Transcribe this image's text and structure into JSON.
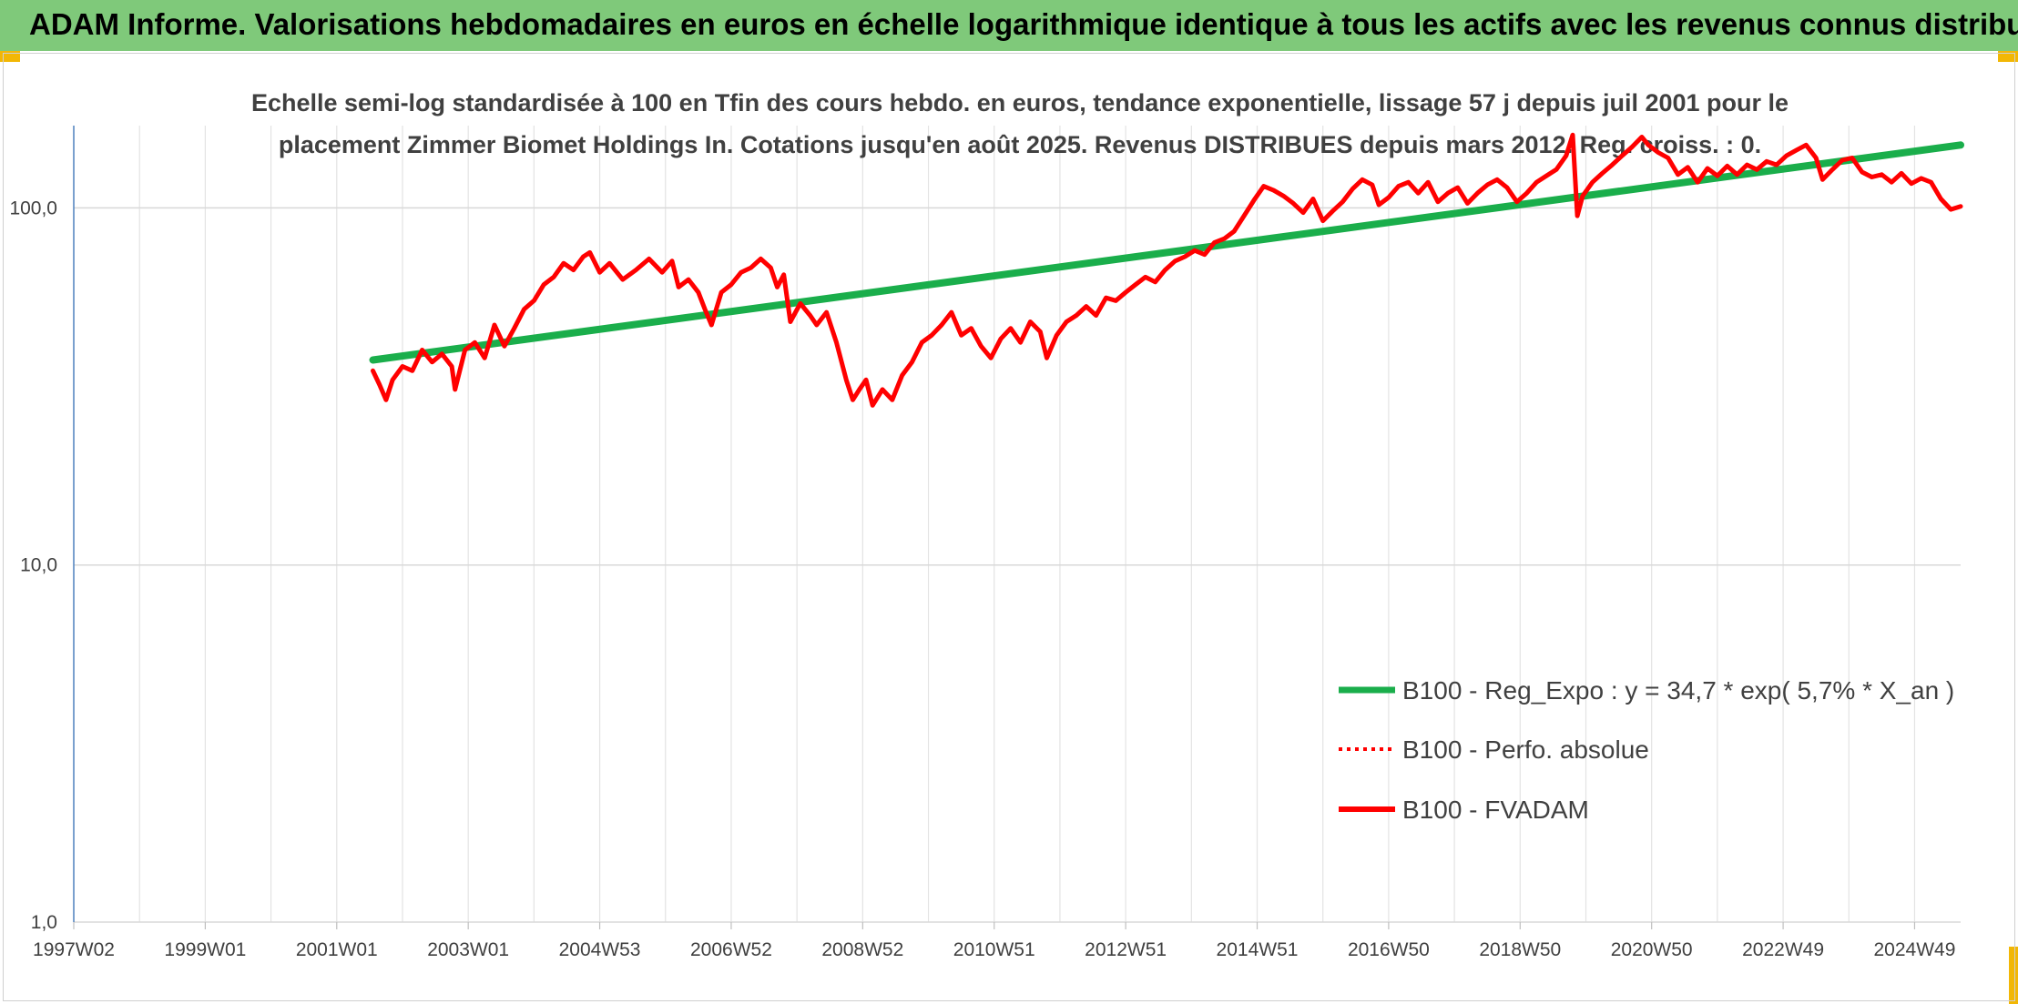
{
  "header": {
    "title": "ADAM Informe. Valorisations hebdomadaires en euros en échelle logarithmique identique à tous les actifs avec les revenus connus distribués"
  },
  "colors": {
    "banner": "#7fc97a",
    "accent": "#f2b705",
    "trend": "#1aae4b",
    "perf": "#ff0000",
    "grid": "#d9d9d9"
  },
  "chart_data": {
    "type": "line",
    "title_lines": [
      "Echelle semi-log standardisée à 100 en Tfin des cours hebdo. en euros, tendance exponentielle, lissage 57 j depuis juil 2001 pour le",
      "placement Zimmer Biomet Holdings In. Cotations jusqu'en août 2025. Revenus DISTRIBUES depuis mars 2012. Reg. croiss. : 0."
    ],
    "y_scale": "log",
    "ylim": [
      1,
      170
    ],
    "y_ticks": [
      {
        "value": 1,
        "label": "1,0"
      },
      {
        "value": 10,
        "label": "10,0"
      },
      {
        "value": 100,
        "label": "100,0"
      }
    ],
    "xlim": [
      1997.0,
      2025.7
    ],
    "x_ticks": [
      {
        "value": 1997.0,
        "label": "1997W02"
      },
      {
        "value": 1999.0,
        "label": "1999W01"
      },
      {
        "value": 2001.0,
        "label": "2001W01"
      },
      {
        "value": 2003.0,
        "label": "2003W01"
      },
      {
        "value": 2005.0,
        "label": "2004W53"
      },
      {
        "value": 2007.0,
        "label": "2006W52"
      },
      {
        "value": 2009.0,
        "label": "2008W52"
      },
      {
        "value": 2011.0,
        "label": "2010W51"
      },
      {
        "value": 2013.0,
        "label": "2012W51"
      },
      {
        "value": 2015.0,
        "label": "2014W51"
      },
      {
        "value": 2017.0,
        "label": "2016W50"
      },
      {
        "value": 2019.0,
        "label": "2018W50"
      },
      {
        "value": 2021.0,
        "label": "2020W50"
      },
      {
        "value": 2023.0,
        "label": "2022W49"
      },
      {
        "value": 2025.0,
        "label": "2024W49"
      }
    ],
    "grid": true,
    "legend_position": "bottom-right",
    "series": [
      {
        "name": "B100 - Reg_Expo : y = 34,7 * exp( 5,7% *  X_an )",
        "style": "solid-thick",
        "color": "#1aae4b",
        "points": [
          [
            2001.55,
            37.5
          ],
          [
            2025.7,
            150
          ]
        ]
      },
      {
        "name": "B100 - Perfo. absolue",
        "style": "dotted",
        "color": "#ff0000",
        "points": []
      },
      {
        "name": "B100 - FVADAM",
        "style": "solid",
        "color": "#ff0000",
        "points": [
          [
            2001.55,
            35
          ],
          [
            2001.65,
            32
          ],
          [
            2001.75,
            29
          ],
          [
            2001.85,
            33
          ],
          [
            2002.0,
            36
          ],
          [
            2002.15,
            35
          ],
          [
            2002.3,
            40
          ],
          [
            2002.45,
            37
          ],
          [
            2002.6,
            39
          ],
          [
            2002.75,
            36
          ],
          [
            2002.8,
            31
          ],
          [
            2002.95,
            40
          ],
          [
            2003.1,
            42
          ],
          [
            2003.25,
            38
          ],
          [
            2003.4,
            47
          ],
          [
            2003.55,
            41
          ],
          [
            2003.7,
            46
          ],
          [
            2003.85,
            52
          ],
          [
            2004.0,
            55
          ],
          [
            2004.15,
            61
          ],
          [
            2004.3,
            64
          ],
          [
            2004.45,
            70
          ],
          [
            2004.6,
            67
          ],
          [
            2004.75,
            73
          ],
          [
            2004.85,
            75
          ],
          [
            2005.0,
            66
          ],
          [
            2005.15,
            70
          ],
          [
            2005.35,
            63
          ],
          [
            2005.55,
            67
          ],
          [
            2005.75,
            72
          ],
          [
            2005.95,
            66
          ],
          [
            2006.1,
            71
          ],
          [
            2006.2,
            60
          ],
          [
            2006.35,
            63
          ],
          [
            2006.5,
            58
          ],
          [
            2006.6,
            52
          ],
          [
            2006.7,
            47
          ],
          [
            2006.85,
            58
          ],
          [
            2007.0,
            61
          ],
          [
            2007.15,
            66
          ],
          [
            2007.3,
            68
          ],
          [
            2007.45,
            72
          ],
          [
            2007.6,
            68
          ],
          [
            2007.7,
            60
          ],
          [
            2007.8,
            65
          ],
          [
            2007.9,
            48
          ],
          [
            2008.05,
            54
          ],
          [
            2008.2,
            50
          ],
          [
            2008.3,
            47
          ],
          [
            2008.45,
            51
          ],
          [
            2008.6,
            42
          ],
          [
            2008.75,
            33
          ],
          [
            2008.85,
            29
          ],
          [
            2008.95,
            31
          ],
          [
            2009.05,
            33
          ],
          [
            2009.15,
            28
          ],
          [
            2009.3,
            31
          ],
          [
            2009.45,
            29
          ],
          [
            2009.6,
            34
          ],
          [
            2009.75,
            37
          ],
          [
            2009.9,
            42
          ],
          [
            2010.05,
            44
          ],
          [
            2010.2,
            47
          ],
          [
            2010.35,
            51
          ],
          [
            2010.5,
            44
          ],
          [
            2010.65,
            46
          ],
          [
            2010.8,
            41
          ],
          [
            2010.95,
            38
          ],
          [
            2011.1,
            43
          ],
          [
            2011.25,
            46
          ],
          [
            2011.4,
            42
          ],
          [
            2011.55,
            48
          ],
          [
            2011.7,
            45
          ],
          [
            2011.8,
            38
          ],
          [
            2011.95,
            44
          ],
          [
            2012.1,
            48
          ],
          [
            2012.25,
            50
          ],
          [
            2012.4,
            53
          ],
          [
            2012.55,
            50
          ],
          [
            2012.7,
            56
          ],
          [
            2012.85,
            55
          ],
          [
            2013.0,
            58
          ],
          [
            2013.15,
            61
          ],
          [
            2013.3,
            64
          ],
          [
            2013.45,
            62
          ],
          [
            2013.6,
            67
          ],
          [
            2013.75,
            71
          ],
          [
            2013.9,
            73
          ],
          [
            2014.05,
            76
          ],
          [
            2014.2,
            74
          ],
          [
            2014.35,
            80
          ],
          [
            2014.5,
            82
          ],
          [
            2014.65,
            86
          ],
          [
            2014.8,
            95
          ],
          [
            2014.95,
            105
          ],
          [
            2015.1,
            115
          ],
          [
            2015.25,
            112
          ],
          [
            2015.4,
            108
          ],
          [
            2015.55,
            103
          ],
          [
            2015.7,
            97
          ],
          [
            2015.85,
            106
          ],
          [
            2016.0,
            92
          ],
          [
            2016.15,
            98
          ],
          [
            2016.3,
            104
          ],
          [
            2016.45,
            113
          ],
          [
            2016.6,
            120
          ],
          [
            2016.75,
            116
          ],
          [
            2016.85,
            102
          ],
          [
            2017.0,
            107
          ],
          [
            2017.15,
            115
          ],
          [
            2017.3,
            118
          ],
          [
            2017.45,
            110
          ],
          [
            2017.6,
            118
          ],
          [
            2017.75,
            104
          ],
          [
            2017.9,
            110
          ],
          [
            2018.05,
            114
          ],
          [
            2018.2,
            103
          ],
          [
            2018.35,
            110
          ],
          [
            2018.5,
            116
          ],
          [
            2018.65,
            120
          ],
          [
            2018.8,
            114
          ],
          [
            2018.95,
            104
          ],
          [
            2019.1,
            110
          ],
          [
            2019.25,
            118
          ],
          [
            2019.4,
            123
          ],
          [
            2019.55,
            128
          ],
          [
            2019.7,
            140
          ],
          [
            2019.8,
            160
          ],
          [
            2019.87,
            95
          ],
          [
            2019.95,
            108
          ],
          [
            2020.1,
            118
          ],
          [
            2020.25,
            125
          ],
          [
            2020.4,
            132
          ],
          [
            2020.55,
            140
          ],
          [
            2020.7,
            148
          ],
          [
            2020.85,
            158
          ],
          [
            2020.95,
            150
          ],
          [
            2021.1,
            143
          ],
          [
            2021.25,
            138
          ],
          [
            2021.4,
            124
          ],
          [
            2021.55,
            130
          ],
          [
            2021.7,
            118
          ],
          [
            2021.85,
            129
          ],
          [
            2022.0,
            123
          ],
          [
            2022.15,
            131
          ],
          [
            2022.3,
            124
          ],
          [
            2022.45,
            132
          ],
          [
            2022.6,
            128
          ],
          [
            2022.75,
            135
          ],
          [
            2022.9,
            132
          ],
          [
            2023.05,
            140
          ],
          [
            2023.2,
            145
          ],
          [
            2023.35,
            150
          ],
          [
            2023.5,
            138
          ],
          [
            2023.6,
            120
          ],
          [
            2023.75,
            128
          ],
          [
            2023.9,
            136
          ],
          [
            2024.05,
            138
          ],
          [
            2024.2,
            126
          ],
          [
            2024.35,
            122
          ],
          [
            2024.5,
            124
          ],
          [
            2024.65,
            118
          ],
          [
            2024.8,
            125
          ],
          [
            2024.95,
            117
          ],
          [
            2025.1,
            121
          ],
          [
            2025.25,
            118
          ],
          [
            2025.4,
            106
          ],
          [
            2025.55,
            99
          ],
          [
            2025.7,
            101
          ]
        ]
      }
    ]
  }
}
